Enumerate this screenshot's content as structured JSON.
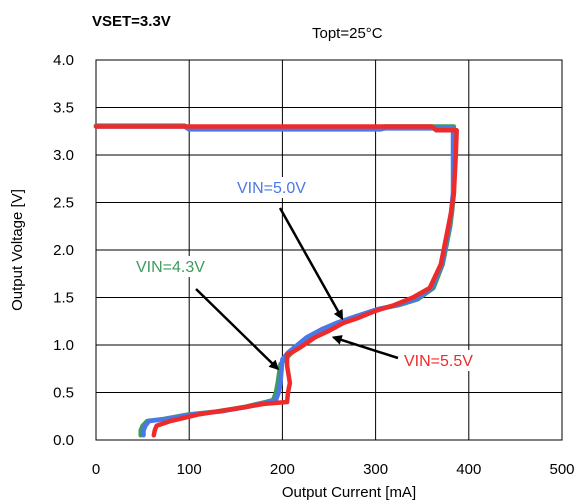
{
  "header": {
    "left": "VSET=3.3V",
    "right": "Topt=25°C"
  },
  "chart_data": {
    "type": "line",
    "title": "",
    "xlabel": "Output Current [mA]",
    "ylabel": "Output Voltage [V]",
    "xlim": [
      0,
      500
    ],
    "ylim": [
      0,
      4.0
    ],
    "xticks": [
      "0",
      "100",
      "200",
      "300",
      "400",
      "500"
    ],
    "yticks": [
      "0.0",
      "0.5",
      "1.0",
      "1.5",
      "2.0",
      "2.5",
      "3.0",
      "3.5",
      "4.0"
    ],
    "grid": true,
    "legend": "annotations",
    "series": [
      {
        "name": "VIN=4.3V",
        "color": "#3f9a5e",
        "x": [
          0,
          95,
          100,
          305,
          310,
          384,
          384,
          382,
          380,
          377,
          372,
          362,
          345,
          325,
          305,
          280,
          262,
          245,
          228,
          218,
          208,
          198,
          195,
          193,
          190,
          182,
          160,
          130,
          100,
          72,
          55,
          50,
          48,
          48
        ],
        "y": [
          3.31,
          3.31,
          3.28,
          3.28,
          3.3,
          3.3,
          2.6,
          2.4,
          2.25,
          2.1,
          1.85,
          1.6,
          1.48,
          1.42,
          1.38,
          1.3,
          1.24,
          1.17,
          1.08,
          1.0,
          0.9,
          0.8,
          0.6,
          0.5,
          0.42,
          0.4,
          0.35,
          0.3,
          0.27,
          0.22,
          0.2,
          0.15,
          0.1,
          0.05
        ]
      },
      {
        "name": "VIN=5.0V",
        "color": "#4a78e8",
        "x": [
          0,
          95,
          100,
          305,
          310,
          383,
          383,
          381,
          379,
          376,
          371,
          360,
          343,
          323,
          303,
          278,
          260,
          243,
          226,
          216,
          206,
          200,
          198,
          196,
          193,
          185,
          163,
          133,
          103,
          75,
          57,
          53,
          51,
          51
        ],
        "y": [
          3.3,
          3.3,
          3.27,
          3.27,
          3.28,
          3.28,
          2.6,
          2.4,
          2.25,
          2.1,
          1.85,
          1.6,
          1.48,
          1.42,
          1.38,
          1.3,
          1.24,
          1.17,
          1.08,
          1.0,
          0.92,
          0.85,
          0.6,
          0.5,
          0.42,
          0.4,
          0.35,
          0.3,
          0.27,
          0.22,
          0.2,
          0.15,
          0.1,
          0.05
        ]
      },
      {
        "name": "VIN=5.5V",
        "color": "#ee2b2b",
        "x": [
          0,
          360,
          365,
          387,
          386,
          384,
          381,
          377,
          370,
          358,
          340,
          320,
          300,
          280,
          265,
          250,
          235,
          220,
          210,
          205,
          205,
          208,
          206,
          205,
          180,
          150,
          110,
          80,
          65,
          63,
          62
        ],
        "y": [
          3.3,
          3.3,
          3.26,
          3.26,
          3.0,
          2.6,
          2.4,
          2.2,
          1.85,
          1.6,
          1.5,
          1.42,
          1.36,
          1.28,
          1.23,
          1.15,
          1.08,
          0.98,
          0.92,
          0.9,
          0.78,
          0.6,
          0.5,
          0.4,
          0.38,
          0.33,
          0.27,
          0.2,
          0.15,
          0.1,
          0.05
        ]
      }
    ],
    "annotations": [
      {
        "text": "VIN=4.3V",
        "color": "#3f9a5e",
        "series": "VIN=4.3V",
        "points_to": [
          195,
          0.75
        ]
      },
      {
        "text": "VIN=5.0V",
        "color": "#4a78e8",
        "series": "VIN=5.0V",
        "points_to": [
          264,
          1.28
        ]
      },
      {
        "text": "VIN=5.5V",
        "color": "#ee2b2b",
        "series": "VIN=5.5V",
        "points_to": [
          255,
          1.08
        ]
      }
    ]
  }
}
